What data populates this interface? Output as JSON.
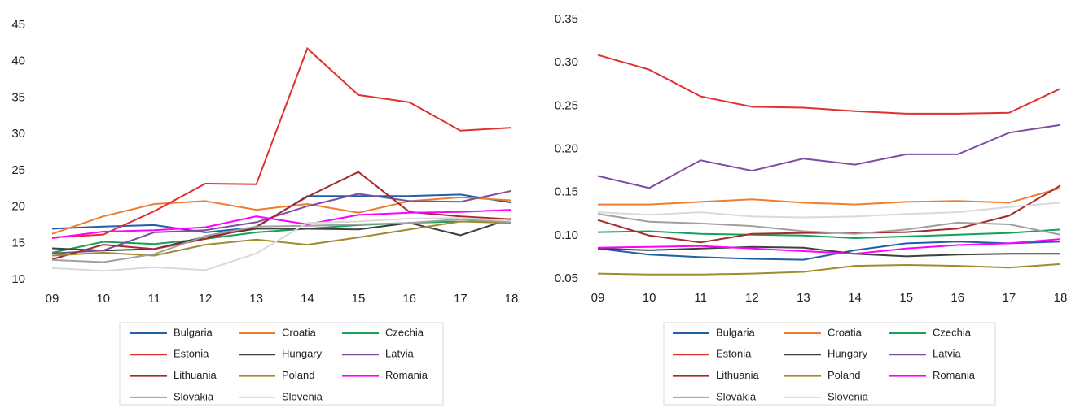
{
  "chart_data": [
    {
      "type": "line",
      "categories": [
        "09",
        "10",
        "11",
        "12",
        "13",
        "14",
        "15",
        "16",
        "17",
        "18"
      ],
      "ylim": [
        10,
        45
      ],
      "yticks": [
        10,
        15,
        20,
        25,
        30,
        35,
        40,
        45
      ],
      "grid": false,
      "series": [
        {
          "name": "Bulgaria",
          "color": "#1f5fa6",
          "values": [
            17.0,
            17.3,
            17.5,
            16.5,
            17.2,
            21.5,
            21.5,
            21.5,
            21.7,
            20.6
          ]
        },
        {
          "name": "Croatia",
          "color": "#ed7d31",
          "values": [
            16.3,
            18.7,
            20.4,
            20.8,
            19.6,
            20.4,
            19.2,
            20.8,
            21.3,
            20.9
          ]
        },
        {
          "name": "Czechia",
          "color": "#17a05a",
          "values": [
            13.7,
            15.2,
            14.9,
            15.6,
            16.5,
            17.0,
            17.5,
            17.8,
            18.0,
            18.0
          ]
        },
        {
          "name": "Estonia",
          "color": "#e03030",
          "values": [
            15.8,
            16.2,
            19.4,
            23.2,
            23.1,
            41.8,
            35.4,
            34.4,
            30.5,
            30.9
          ]
        },
        {
          "name": "Hungary",
          "color": "#404040",
          "values": [
            14.3,
            14.0,
            14.2,
            15.9,
            17.0,
            17.0,
            16.9,
            17.8,
            16.1,
            18.4
          ]
        },
        {
          "name": "Latvia",
          "color": "#7e4ea3",
          "values": [
            13.6,
            14.0,
            16.5,
            16.8,
            17.9,
            20.1,
            21.8,
            20.8,
            20.7,
            22.2
          ]
        },
        {
          "name": "Lithuania",
          "color": "#a52a2a",
          "values": [
            12.8,
            14.8,
            14.2,
            15.6,
            17.3,
            21.4,
            24.8,
            19.3,
            18.7,
            18.3
          ]
        },
        {
          "name": "Poland",
          "color": "#a08c2e",
          "values": [
            13.3,
            13.7,
            13.3,
            14.8,
            15.5,
            14.8,
            15.8,
            16.9,
            18.0,
            17.8
          ]
        },
        {
          "name": "Romania",
          "color": "#ff00ff",
          "values": [
            15.7,
            16.6,
            16.8,
            17.2,
            18.7,
            17.6,
            18.9,
            19.2,
            19.3,
            19.6
          ]
        },
        {
          "name": "Slovakia",
          "color": "#a0a0a0",
          "values": [
            12.7,
            12.4,
            13.5,
            16.0,
            17.3,
            17.4,
            17.6,
            17.8,
            18.3,
            17.9
          ]
        },
        {
          "name": "Slovenia",
          "color": "#d9d9d9",
          "values": [
            11.6,
            11.2,
            11.7,
            11.3,
            13.6,
            17.8,
            18.0,
            18.4,
            18.5,
            18.1
          ]
        }
      ]
    },
    {
      "type": "line",
      "categories": [
        "09",
        "10",
        "11",
        "12",
        "13",
        "14",
        "15",
        "16",
        "17",
        "18"
      ],
      "ylim": [
        0.05,
        0.35
      ],
      "yticks": [
        0.05,
        {
          "value": 0.1,
          "label": "0.10"
        },
        0.15,
        {
          "value": 0.2,
          "label": "0.20"
        },
        0.25,
        {
          "value": 0.3,
          "label": "0.30"
        },
        0.35
      ],
      "grid": false,
      "series": [
        {
          "name": "Bulgaria",
          "color": "#1f5fa6",
          "values": [
            0.085,
            0.078,
            0.075,
            0.073,
            0.072,
            0.083,
            0.091,
            0.093,
            0.091,
            0.093
          ]
        },
        {
          "name": "Croatia",
          "color": "#ed7d31",
          "values": [
            0.136,
            0.136,
            0.139,
            0.142,
            0.138,
            0.136,
            0.139,
            0.14,
            0.138,
            0.155
          ]
        },
        {
          "name": "Czechia",
          "color": "#17a05a",
          "values": [
            0.104,
            0.105,
            0.102,
            0.101,
            0.1,
            0.097,
            0.099,
            0.101,
            0.103,
            0.107
          ]
        },
        {
          "name": "Estonia",
          "color": "#e03030",
          "values": [
            0.309,
            0.292,
            0.261,
            0.249,
            0.248,
            0.244,
            0.241,
            0.241,
            0.242,
            0.27
          ]
        },
        {
          "name": "Hungary",
          "color": "#404040",
          "values": [
            0.085,
            0.083,
            0.085,
            0.087,
            0.086,
            0.079,
            0.076,
            0.078,
            0.079,
            0.079
          ]
        },
        {
          "name": "Latvia",
          "color": "#7e4ea3",
          "values": [
            0.169,
            0.155,
            0.187,
            0.175,
            0.189,
            0.182,
            0.194,
            0.194,
            0.219,
            0.228
          ]
        },
        {
          "name": "Lithuania",
          "color": "#a52a2a",
          "values": [
            0.118,
            0.1,
            0.092,
            0.102,
            0.103,
            0.103,
            0.104,
            0.108,
            0.123,
            0.158
          ]
        },
        {
          "name": "Poland",
          "color": "#a08c2e",
          "values": [
            0.056,
            0.055,
            0.055,
            0.056,
            0.058,
            0.065,
            0.066,
            0.065,
            0.063,
            0.067
          ]
        },
        {
          "name": "Romania",
          "color": "#ff00ff",
          "values": [
            0.086,
            0.087,
            0.088,
            0.085,
            0.082,
            0.079,
            0.085,
            0.089,
            0.091,
            0.096
          ]
        },
        {
          "name": "Slovakia",
          "color": "#a0a0a0",
          "values": [
            0.125,
            0.116,
            0.114,
            0.111,
            0.105,
            0.102,
            0.107,
            0.115,
            0.113,
            0.101
          ]
        },
        {
          "name": "Slovenia",
          "color": "#d9d9d9",
          "values": [
            0.127,
            0.124,
            0.127,
            0.122,
            0.121,
            0.122,
            0.125,
            0.127,
            0.133,
            0.138
          ]
        }
      ]
    }
  ]
}
